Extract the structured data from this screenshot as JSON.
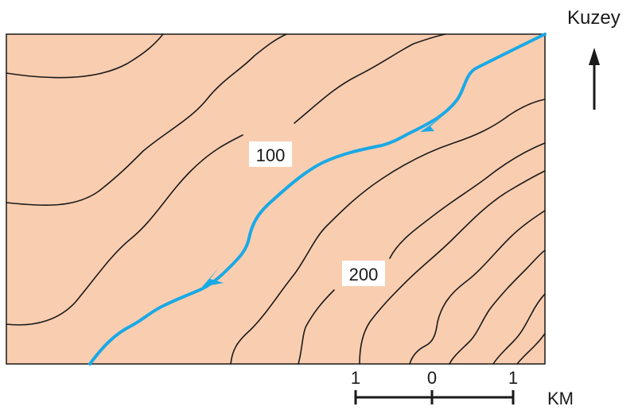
{
  "map": {
    "land_color": "#f9cdb0",
    "contour_color": "#1a1a1a",
    "river_color": "#19a9e6",
    "contour_labels": [
      "100",
      "200"
    ]
  },
  "north": {
    "label": "Kuzey"
  },
  "scale": {
    "tick_labels": [
      "1",
      "0",
      "1"
    ],
    "unit": "KM"
  }
}
